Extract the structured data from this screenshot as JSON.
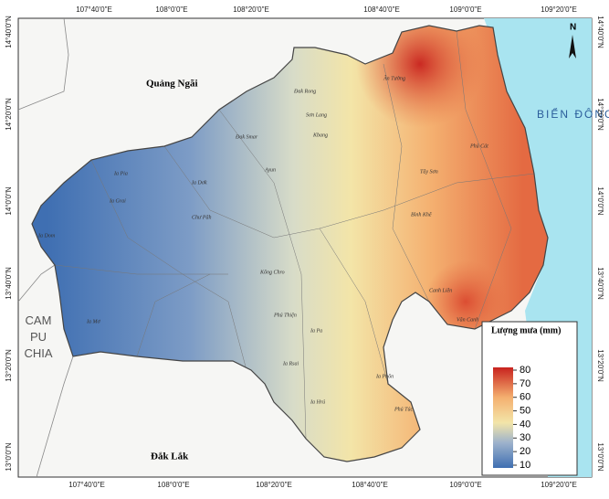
{
  "map": {
    "coords_top": [
      "107°40'0\"E",
      "108°0'0\"E",
      "108°20'0\"E",
      "108°40'0\"E",
      "109°0'0\"E",
      "109°20'0\"E"
    ],
    "coords_bottom": [
      "107°40'0\"E",
      "108°0'0\"E",
      "108°20'0\"E",
      "108°40'0\"E",
      "109°0'0\"E",
      "109°20'0\"E"
    ],
    "coords_left": [
      "14°40'0\"N",
      "14°20'0\"N",
      "14°0'0\"N",
      "13°40'0\"N",
      "13°20'0\"N",
      "13°0'0\"N"
    ],
    "coords_right": [
      "14°40'0\"N",
      "14°20'0\"N",
      "14°0'0\"N",
      "13°40'0\"N",
      "13°20'0\"N",
      "13°0'0\"N"
    ],
    "regions": {
      "north": "Quảng Ngãi",
      "south": "Đắk Lắk",
      "west": "CAM PU CHIA",
      "sea": "BIỂN ĐÔNG"
    },
    "north_arrow": "N",
    "legend": {
      "title": "Lượng mưa (mm)",
      "ticks": [
        80,
        70,
        60,
        50,
        40,
        30,
        20,
        10
      ]
    },
    "communes": [
      "Đak Rong",
      "Sơn Lang",
      "Kbang",
      "Đak Smar",
      "Ayun",
      "Ia Pia",
      "Ia Dơk",
      "Ia Mơ",
      "Vân Canh",
      "Canh Liên",
      "Ân Tường",
      "Phù Cát",
      "Chư Păh",
      "Ia Grai",
      "Kông Chro",
      "Phú Thiện",
      "Ia Rsai",
      "Ia Pa",
      "Tây Sơn",
      "Bình Khê",
      "Ia Pnôn",
      "Ia Dom",
      "Phú Túc",
      "Ia Hrú"
    ]
  }
}
